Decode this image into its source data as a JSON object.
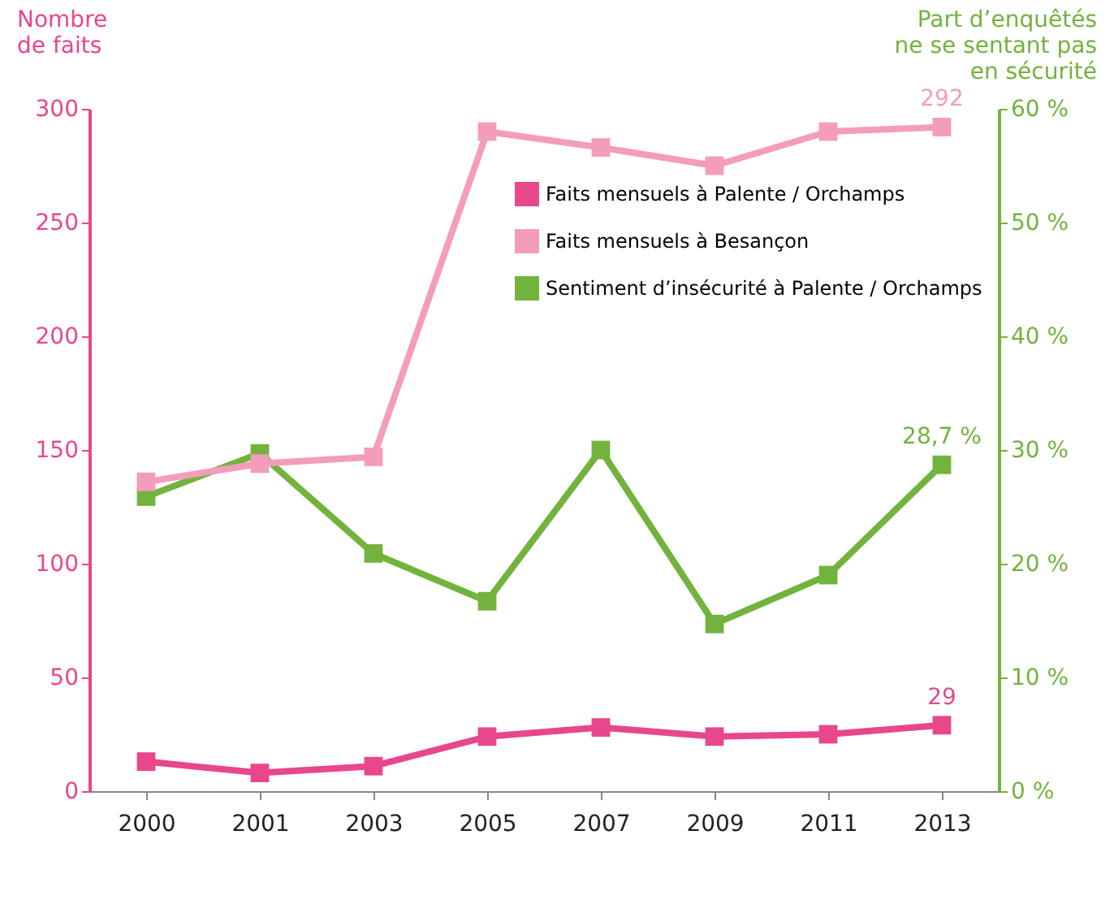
{
  "chart_data": {
    "type": "line",
    "categories": [
      "2000",
      "2001",
      "2003",
      "2005",
      "2007",
      "2009",
      "2011",
      "2013"
    ],
    "ylabel": "Nombre\nde faits",
    "y2label": "Part d’enquêtés\nne se sentant pas\nen sécurité",
    "ylim": [
      0,
      300
    ],
    "yticks": [
      0,
      50,
      100,
      150,
      200,
      250,
      300
    ],
    "y2lim": [
      0,
      60
    ],
    "y2ticks": [
      {
        "value": 0,
        "label": "0 %"
      },
      {
        "value": 10,
        "label": "10 %"
      },
      {
        "value": 20,
        "label": "20 %"
      },
      {
        "value": 30,
        "label": "30 %"
      },
      {
        "value": 40,
        "label": "40 %"
      },
      {
        "value": 50,
        "label": "50 %"
      },
      {
        "value": 60,
        "label": "60 %"
      }
    ],
    "marker": "square",
    "line_style": "solid",
    "grid": false,
    "legend": "top",
    "series": [
      {
        "name": "Faits mensuels à Palente / Orchamps",
        "color": "#e8478b",
        "values": [
          13,
          8,
          11,
          24,
          28,
          24,
          25,
          29
        ],
        "value_labels": [
          null,
          null,
          null,
          null,
          null,
          null,
          null,
          "29"
        ]
      },
      {
        "name": "Faits mensuels à Besançon",
        "color": "#f49cbb",
        "values": [
          136,
          144,
          147,
          290,
          283,
          275,
          290,
          292
        ],
        "value_labels": [
          null,
          null,
          null,
          null,
          null,
          null,
          null,
          "292"
        ]
      },
      {
        "name": "Sentiment d’insécurité à Palente / Orchamps",
        "color": "#72b33e",
        "axis": "y2",
        "values": [
          25.9,
          29.7,
          20.9,
          16.7,
          30.0,
          14.7,
          19.0,
          28.7
        ],
        "value_labels": [
          null,
          null,
          null,
          null,
          null,
          null,
          null,
          "28,7 %"
        ]
      }
    ]
  }
}
